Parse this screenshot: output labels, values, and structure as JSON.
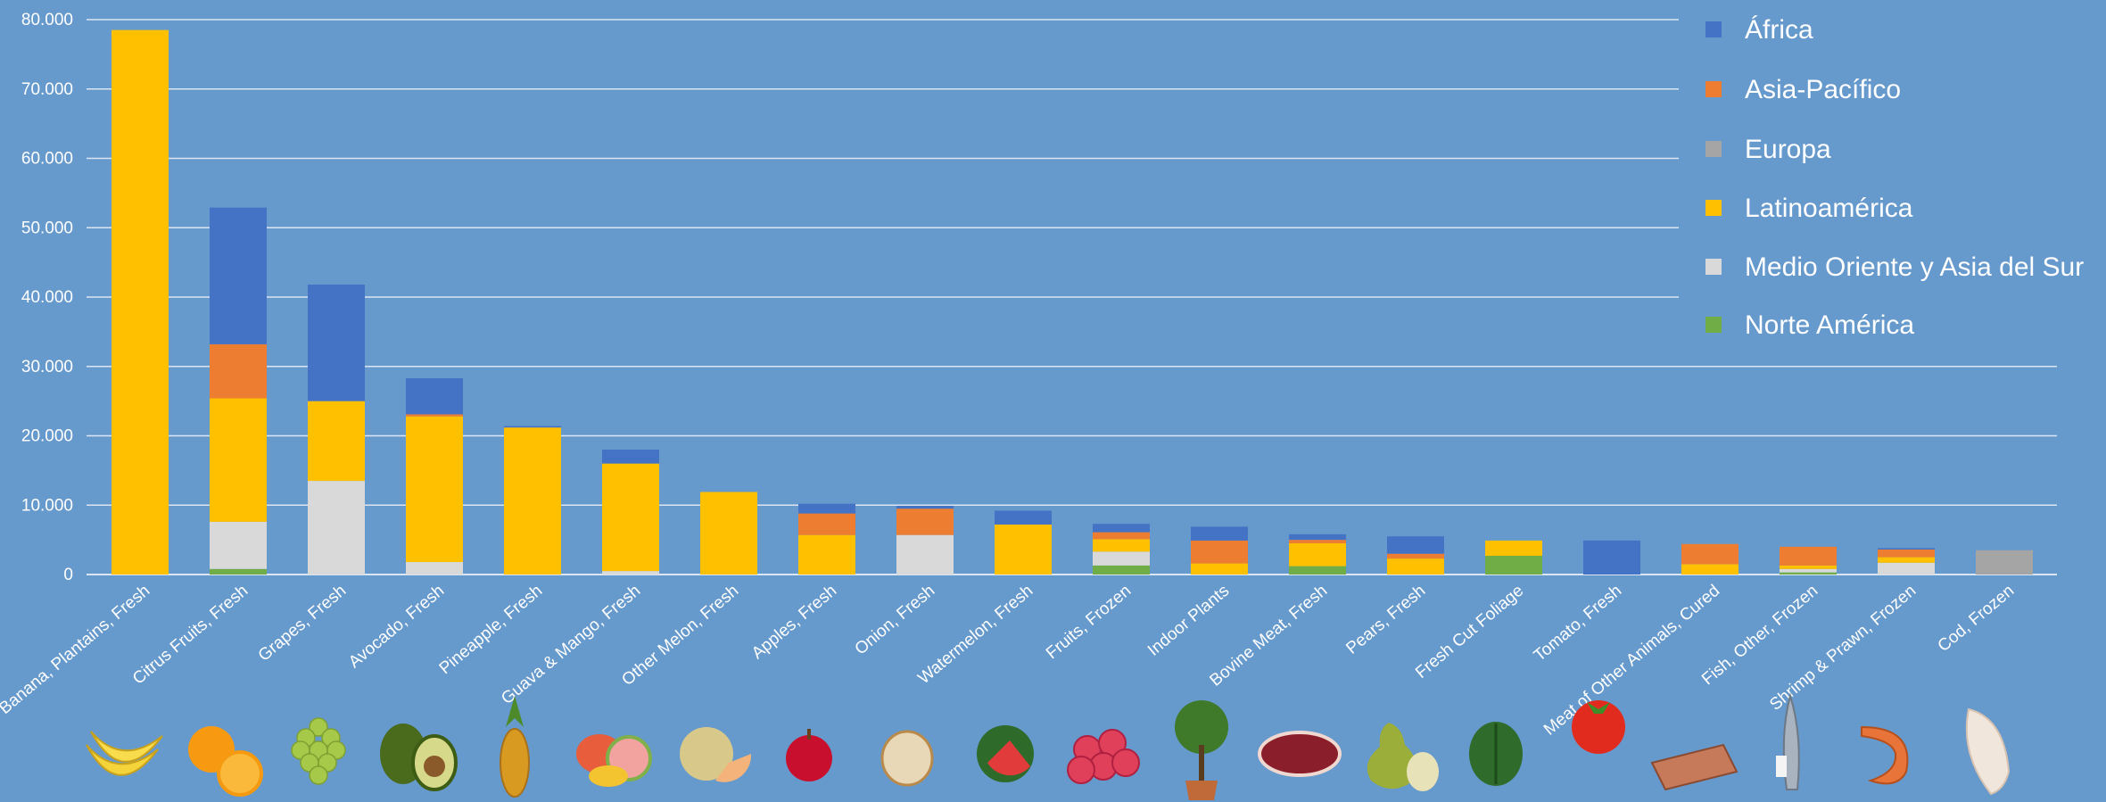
{
  "chart_data": {
    "type": "bar",
    "stacked": true,
    "title": "",
    "xlabel": "",
    "ylabel": "",
    "ylim": [
      0,
      80000
    ],
    "y_ticks": [
      "0",
      "10.000",
      "20.000",
      "30.000",
      "40.000",
      "50.000",
      "60.000",
      "70.000",
      "80.000"
    ],
    "grid": true,
    "legend_position": "right",
    "categories": [
      "Banana, Plantains, Fresh",
      "Citrus Fruits, Fresh",
      "Grapes, Fresh",
      "Avocado, Fresh",
      "Pineapple, Fresh",
      "Guava & Mango, Fresh",
      "Other Melon, Fresh",
      "Apples, Fresh",
      "Onion, Fresh",
      "Watermelon, Fresh",
      "Fruits, Frozen",
      "Indoor Plants",
      "Bovine Meat, Fresh",
      "Pears, Fresh",
      "Fresh Cut Foliage",
      "Tomato, Fresh",
      "Meat of Other Animals, Cured",
      "Fish, Other, Frozen",
      "Shrimp & Prawn, Frozen",
      "Cod, Frozen"
    ],
    "stack_order": [
      "Norte América",
      "Medio Oriente y Asia del Sur",
      "Europa",
      "Latinoamérica",
      "Asia-Pacífico",
      "África"
    ],
    "series": [
      {
        "name": "África",
        "color": "#4472c4",
        "values": [
          0,
          19700,
          16800,
          5200,
          200,
          2000,
          0,
          1400,
          400,
          2000,
          1200,
          2000,
          800,
          2500,
          0,
          4900,
          0,
          0,
          200,
          0
        ]
      },
      {
        "name": "Asia-Pacífico",
        "color": "#ed7d31",
        "values": [
          0,
          7800,
          0,
          300,
          0,
          0,
          0,
          3100,
          3800,
          0,
          1000,
          3300,
          500,
          700,
          0,
          0,
          2900,
          2700,
          1100,
          0
        ]
      },
      {
        "name": "Europa",
        "color": "#a5a5a5",
        "values": [
          0,
          0,
          0,
          0,
          0,
          0,
          0,
          0,
          0,
          0,
          0,
          0,
          0,
          0,
          0,
          0,
          0,
          0,
          0,
          3500
        ]
      },
      {
        "name": "Latinoamérica",
        "color": "#ffc000",
        "values": [
          78500,
          17800,
          11500,
          21000,
          21200,
          15500,
          11900,
          5700,
          0,
          7200,
          1800,
          1600,
          3300,
          2300,
          2200,
          0,
          1500,
          500,
          800,
          0
        ]
      },
      {
        "name": "Medio Oriente y Asia del Sur",
        "color": "#d9d9d9",
        "values": [
          0,
          6800,
          13500,
          1800,
          0,
          500,
          0,
          0,
          5700,
          0,
          2000,
          0,
          0,
          0,
          0,
          0,
          0,
          500,
          1700,
          0
        ]
      },
      {
        "name": "Norte América",
        "color": "#70ad47",
        "values": [
          0,
          800,
          0,
          0,
          0,
          0,
          0,
          0,
          0,
          0,
          1300,
          0,
          1200,
          0,
          2700,
          0,
          0,
          300,
          0,
          0
        ]
      }
    ],
    "pictures": [
      "banana-icon",
      "orange-icon",
      "grapes-icon",
      "avocado-icon",
      "pineapple-icon",
      "mango-guava-icon",
      "melon-icon",
      "apple-icon",
      "onion-icon",
      "watermelon-icon",
      "lychee-icon",
      "potted-plant-icon",
      "beef-icon",
      "pear-icon",
      "leaf-icon",
      "tomato-icon",
      "cured-meat-icon",
      "fish-icon",
      "shrimp-icon",
      "cod-fillet-icon"
    ]
  },
  "colors": {
    "background": "#6699cc",
    "gridline": "#dce6f2",
    "text": "#ffffff"
  }
}
